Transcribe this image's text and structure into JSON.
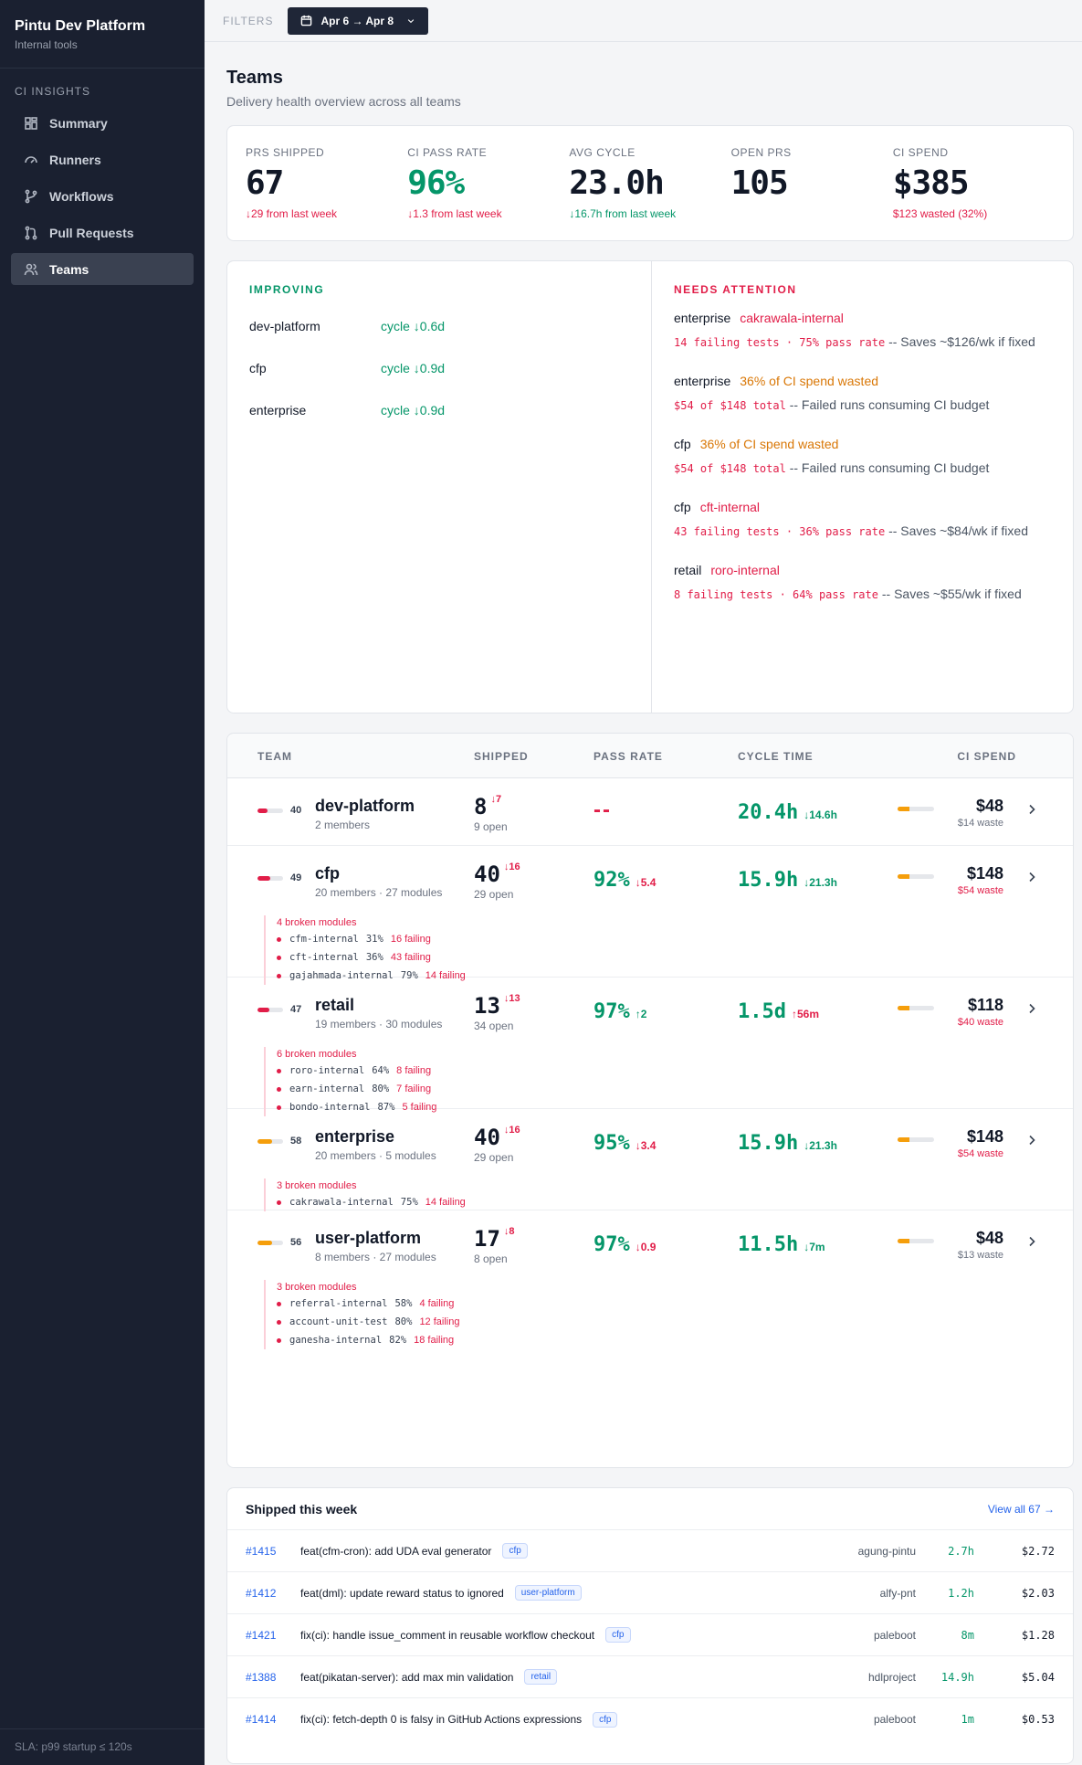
{
  "app": {
    "title": "Pintu Dev Platform",
    "subtitle": "Internal tools"
  },
  "sidebar": {
    "section": "CI INSIGHTS",
    "items": [
      {
        "label": "Summary",
        "icon": "grid-icon"
      },
      {
        "label": "Runners",
        "icon": "gauge-icon"
      },
      {
        "label": "Workflows",
        "icon": "branch-icon"
      },
      {
        "label": "Pull Requests",
        "icon": "pull-request-icon"
      },
      {
        "label": "Teams",
        "icon": "users-icon",
        "active": true
      }
    ],
    "footer": "SLA: p99 startup ≤ 120s"
  },
  "topbar": {
    "filters_label": "FILTERS",
    "date_range": "Apr 6 → Apr 8"
  },
  "page": {
    "title": "Teams",
    "subtitle": "Delivery health overview across all teams"
  },
  "kpis": [
    {
      "label": "PRS SHIPPED",
      "value": "67",
      "delta": "↓29 from last week",
      "value_color": "default",
      "delta_color": "red"
    },
    {
      "label": "CI PASS RATE",
      "value": "96%",
      "delta": "↓1.3 from last week",
      "value_color": "green",
      "delta_color": "red"
    },
    {
      "label": "AVG CYCLE",
      "value": "23.0h",
      "delta": "↓16.7h from last week",
      "value_color": "default",
      "delta_color": "green"
    },
    {
      "label": "OPEN PRS",
      "value": "105",
      "delta": "",
      "value_color": "default",
      "delta_color": "red"
    },
    {
      "label": "CI SPEND",
      "value": "$385",
      "delta": "$123 wasted (32%)",
      "value_color": "default",
      "delta_color": "red"
    }
  ],
  "improving": {
    "heading": "IMPROVING",
    "rows": [
      {
        "team": "dev-platform",
        "change": "cycle ↓0.6d"
      },
      {
        "team": "cfp",
        "change": "cycle ↓0.9d"
      },
      {
        "team": "enterprise",
        "change": "cycle ↓0.9d"
      }
    ]
  },
  "attention": {
    "heading": "NEEDS ATTENTION",
    "items": [
      {
        "team": "enterprise",
        "issue": "cakrawala-internal",
        "issue_color": "red",
        "stat": "14 failing tests · 75% pass rate",
        "note": " -- Saves ~$126/wk if fixed"
      },
      {
        "team": "enterprise",
        "issue": "36% of CI spend wasted",
        "issue_color": "orange",
        "stat": "$54 of $148 total",
        "note": " -- Failed runs consuming CI budget"
      },
      {
        "team": "cfp",
        "issue": "36% of CI spend wasted",
        "issue_color": "orange",
        "stat": "$54 of $148 total",
        "note": " -- Failed runs consuming CI budget"
      },
      {
        "team": "cfp",
        "issue": "cft-internal",
        "issue_color": "red",
        "stat": "43 failing tests · 36% pass rate",
        "note": " -- Saves ~$84/wk if fixed"
      },
      {
        "team": "retail",
        "issue": "roro-internal",
        "issue_color": "red",
        "stat": "8 failing tests · 64% pass rate",
        "note": " -- Saves ~$55/wk if fixed"
      }
    ]
  },
  "table": {
    "headers": {
      "team": "TEAM",
      "shipped": "SHIPPED",
      "pass": "PASS RATE",
      "cycle": "CYCLE TIME",
      "spend": "CI SPEND"
    },
    "rows": [
      {
        "score": "40",
        "score_color": "#e11d48",
        "score_fill": 0.4,
        "name": "dev-platform",
        "meta": "2 members",
        "shipped": "8",
        "shipped_delta": "↓7",
        "open": "9 open",
        "pass": "--",
        "pass_delta": "",
        "cycle": "20.4h",
        "cycle_delta": "↓14.6h",
        "spend": "$48",
        "spend_fill": 0.32,
        "waste": "$14 waste",
        "waste_color": "gray",
        "broken_head": "",
        "modules": []
      },
      {
        "score": "49",
        "score_color": "#e11d48",
        "score_fill": 0.49,
        "name": "cfp",
        "meta": "20 members · 27 modules",
        "shipped": "40",
        "shipped_delta": "↓16",
        "open": "29 open",
        "pass": "92%",
        "pass_delta": "↓5.4",
        "pass_delta_color": "red",
        "cycle": "15.9h",
        "cycle_delta": "↓21.3h",
        "spend": "$148",
        "spend_fill": 0.32,
        "waste": "$54 waste",
        "waste_color": "red",
        "broken_head": "4 broken modules",
        "modules": [
          {
            "name": "cfm-internal",
            "pct": "31%",
            "fail": "16 failing"
          },
          {
            "name": "cft-internal",
            "pct": "36%",
            "fail": "43 failing"
          },
          {
            "name": "gajahmada-internal",
            "pct": "79%",
            "fail": "14 failing"
          }
        ]
      },
      {
        "score": "47",
        "score_color": "#e11d48",
        "score_fill": 0.47,
        "name": "retail",
        "meta": "19 members · 30 modules",
        "shipped": "13",
        "shipped_delta": "↓13",
        "open": "34 open",
        "pass": "97%",
        "pass_delta": "↑2",
        "pass_delta_color": "green",
        "cycle": "1.5d",
        "cycle_delta": "↑56m",
        "cycle_delta_color": "red",
        "spend": "$118",
        "spend_fill": 0.32,
        "waste": "$40 waste",
        "waste_color": "red",
        "broken_head": "6 broken modules",
        "modules": [
          {
            "name": "roro-internal",
            "pct": "64%",
            "fail": "8 failing"
          },
          {
            "name": "earn-internal",
            "pct": "80%",
            "fail": "7 failing"
          },
          {
            "name": "bondo-internal",
            "pct": "87%",
            "fail": "5 failing"
          }
        ]
      },
      {
        "score": "58",
        "score_color": "#f59e0b",
        "score_fill": 0.58,
        "name": "enterprise",
        "meta": "20 members · 5 modules",
        "shipped": "40",
        "shipped_delta": "↓16",
        "open": "29 open",
        "pass": "95%",
        "pass_delta": "↓3.4",
        "pass_delta_color": "red",
        "cycle": "15.9h",
        "cycle_delta": "↓21.3h",
        "spend": "$148",
        "spend_fill": 0.32,
        "waste": "$54 waste",
        "waste_color": "red",
        "broken_head": "3 broken modules",
        "modules": [
          {
            "name": "cakrawala-internal",
            "pct": "75%",
            "fail": "14 failing"
          }
        ]
      },
      {
        "score": "56",
        "score_color": "#f59e0b",
        "score_fill": 0.56,
        "name": "user-platform",
        "meta": "8 members · 27 modules",
        "shipped": "17",
        "shipped_delta": "↓8",
        "open": "8 open",
        "pass": "97%",
        "pass_delta": "↓0.9",
        "pass_delta_color": "red",
        "cycle": "11.5h",
        "cycle_delta": "↓7m",
        "spend": "$48",
        "spend_fill": 0.32,
        "waste": "$13 waste",
        "waste_color": "gray",
        "broken_head": "3 broken modules",
        "modules": [
          {
            "name": "referral-internal",
            "pct": "58%",
            "fail": "4 failing"
          },
          {
            "name": "account-unit-test",
            "pct": "80%",
            "fail": "12 failing"
          },
          {
            "name": "ganesha-internal",
            "pct": "82%",
            "fail": "18 failing"
          }
        ]
      }
    ]
  },
  "shipped": {
    "title": "Shipped this week",
    "view_all": "View all 67 →",
    "rows": [
      {
        "num": "#1415",
        "title": "feat(cfm-cron): add UDA eval generator",
        "tag": "cfp",
        "author": "agung-pintu",
        "time": "2.7h",
        "cost": "$2.72"
      },
      {
        "num": "#1412",
        "title": "feat(dml): update reward status to ignored",
        "tag": "user-platform",
        "author": "alfy-pnt",
        "time": "1.2h",
        "cost": "$2.03"
      },
      {
        "num": "#1421",
        "title": "fix(ci): handle issue_comment in reusable workflow checkout",
        "tag": "cfp",
        "author": "paleboot",
        "time": "8m",
        "cost": "$1.28"
      },
      {
        "num": "#1388",
        "title": "feat(pikatan-server): add max min validation",
        "tag": "retail",
        "author": "hdlproject",
        "time": "14.9h",
        "cost": "$5.04"
      },
      {
        "num": "#1414",
        "title": "fix(ci): fetch-depth 0 is falsy in GitHub Actions expressions",
        "tag": "cfp",
        "author": "paleboot",
        "time": "1m",
        "cost": "$0.53"
      }
    ]
  },
  "colors": {
    "sidebar_bg": "#1a2030",
    "green": "#059669",
    "red": "#e11d48",
    "orange": "#d97706",
    "link": "#2563eb"
  }
}
